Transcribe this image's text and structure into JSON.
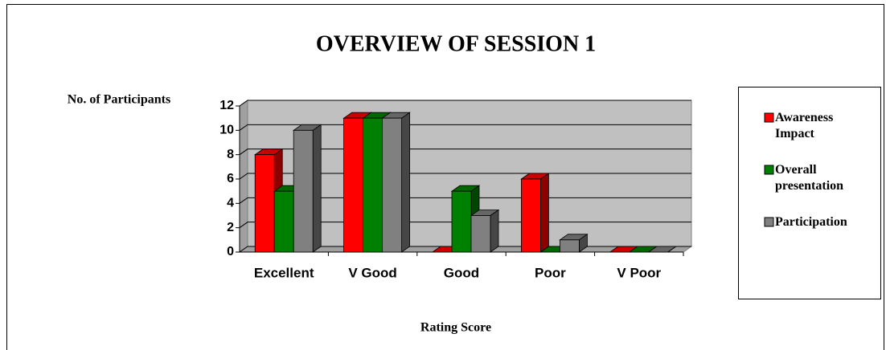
{
  "chart_data": {
    "type": "bar3d",
    "title": "OVERVIEW OF SESSION 1",
    "y_label": "No. of Participants",
    "x_label": "Rating Score",
    "categories": [
      "Excellent",
      "V Good",
      "Good",
      "Poor",
      "V Poor"
    ],
    "series": [
      {
        "name": "Awareness Impact",
        "color": "#ff0000",
        "values": [
          8,
          11,
          0,
          6,
          0
        ]
      },
      {
        "name": "Overall presentation",
        "color": "#008000",
        "values": [
          5,
          11,
          5,
          0,
          0
        ]
      },
      {
        "name": "Participation",
        "color": "#808080",
        "values": [
          10,
          11,
          3,
          1,
          0
        ]
      }
    ],
    "ylim": [
      0,
      12
    ],
    "yticks": [
      0,
      2,
      4,
      6,
      8,
      10,
      12
    ],
    "grid": true,
    "legend": "right"
  }
}
